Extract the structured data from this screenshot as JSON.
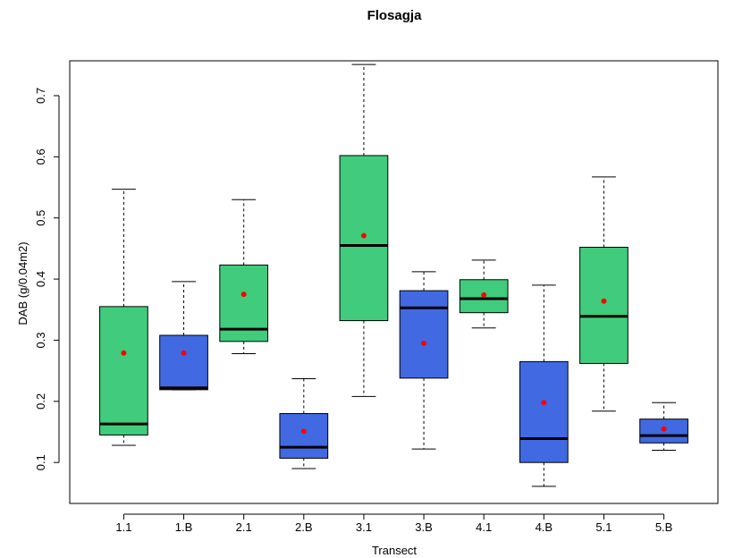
{
  "chart_data": {
    "type": "boxplot",
    "title": "Flosagja",
    "x_label": "Transect",
    "y_label": "DAB (g/0.04m2)",
    "categories": [
      "1.1",
      "1.B",
      "2.1",
      "2.B",
      "3.1",
      "3.B",
      "4.1",
      "4.B",
      "5.1",
      "5.B"
    ],
    "colors": [
      "#40cc7c",
      "#4169e1",
      "#40cc7c",
      "#4169e1",
      "#40cc7c",
      "#4169e1",
      "#40cc7c",
      "#4169e1",
      "#40cc7c",
      "#4169e1"
    ],
    "mean_color": "#ff0000",
    "boxes": [
      {
        "whislo": 0.128,
        "q1": 0.145,
        "med": 0.163,
        "q3": 0.355,
        "whishi": 0.547,
        "mean": 0.279
      },
      {
        "whislo": 0.219,
        "q1": 0.219,
        "med": 0.222,
        "q3": 0.308,
        "whishi": 0.396,
        "mean": 0.279
      },
      {
        "whislo": 0.278,
        "q1": 0.298,
        "med": 0.318,
        "q3": 0.423,
        "whishi": 0.53,
        "mean": 0.375
      },
      {
        "whislo": 0.09,
        "q1": 0.107,
        "med": 0.125,
        "q3": 0.18,
        "whishi": 0.237,
        "mean": 0.151
      },
      {
        "whislo": 0.208,
        "q1": 0.332,
        "med": 0.455,
        "q3": 0.602,
        "whishi": 0.751,
        "mean": 0.471
      },
      {
        "whislo": 0.122,
        "q1": 0.238,
        "med": 0.353,
        "q3": 0.381,
        "whishi": 0.412,
        "mean": 0.295
      },
      {
        "whislo": 0.32,
        "q1": 0.345,
        "med": 0.368,
        "q3": 0.399,
        "whishi": 0.431,
        "mean": 0.374
      },
      {
        "whislo": 0.061,
        "q1": 0.1,
        "med": 0.139,
        "q3": 0.265,
        "whishi": 0.39,
        "mean": 0.198
      },
      {
        "whislo": 0.184,
        "q1": 0.262,
        "med": 0.339,
        "q3": 0.452,
        "whishi": 0.567,
        "mean": 0.364
      },
      {
        "whislo": 0.12,
        "q1": 0.132,
        "med": 0.144,
        "q3": 0.171,
        "whishi": 0.198,
        "mean": 0.155
      }
    ],
    "ylim": [
      0.033,
      0.757
    ],
    "yticks": [
      0.1,
      0.2,
      0.3,
      0.4,
      0.5,
      0.6,
      0.7
    ]
  }
}
